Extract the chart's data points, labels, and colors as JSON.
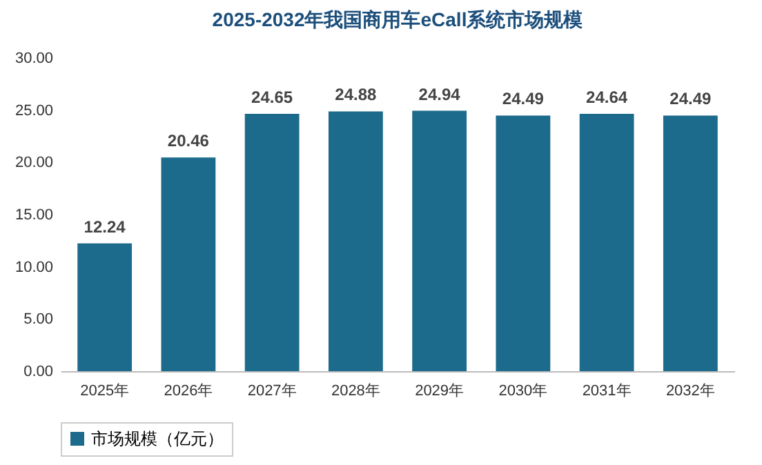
{
  "chart_data": {
    "type": "bar",
    "title": "2025-2032年我国商用车eCall系统市场规模",
    "categories": [
      "2025年",
      "2026年",
      "2027年",
      "2028年",
      "2029年",
      "2030年",
      "2031年",
      "2032年"
    ],
    "series": [
      {
        "name": "市场规模（亿元）",
        "color": "#1d6b8c",
        "values": [
          12.24,
          20.46,
          24.65,
          24.88,
          24.94,
          24.49,
          24.64,
          24.49
        ]
      }
    ],
    "ylim": [
      0,
      30
    ],
    "yticks": [
      {
        "value": 0,
        "label": "0.00"
      },
      {
        "value": 5,
        "label": "5.00"
      },
      {
        "value": 10,
        "label": "10.00"
      },
      {
        "value": 15,
        "label": "15.00"
      },
      {
        "value": 20,
        "label": "20.00"
      },
      {
        "value": 25,
        "label": "25.00"
      },
      {
        "value": 30,
        "label": "30.00"
      }
    ],
    "data_labels": true,
    "legend": "bottom"
  }
}
